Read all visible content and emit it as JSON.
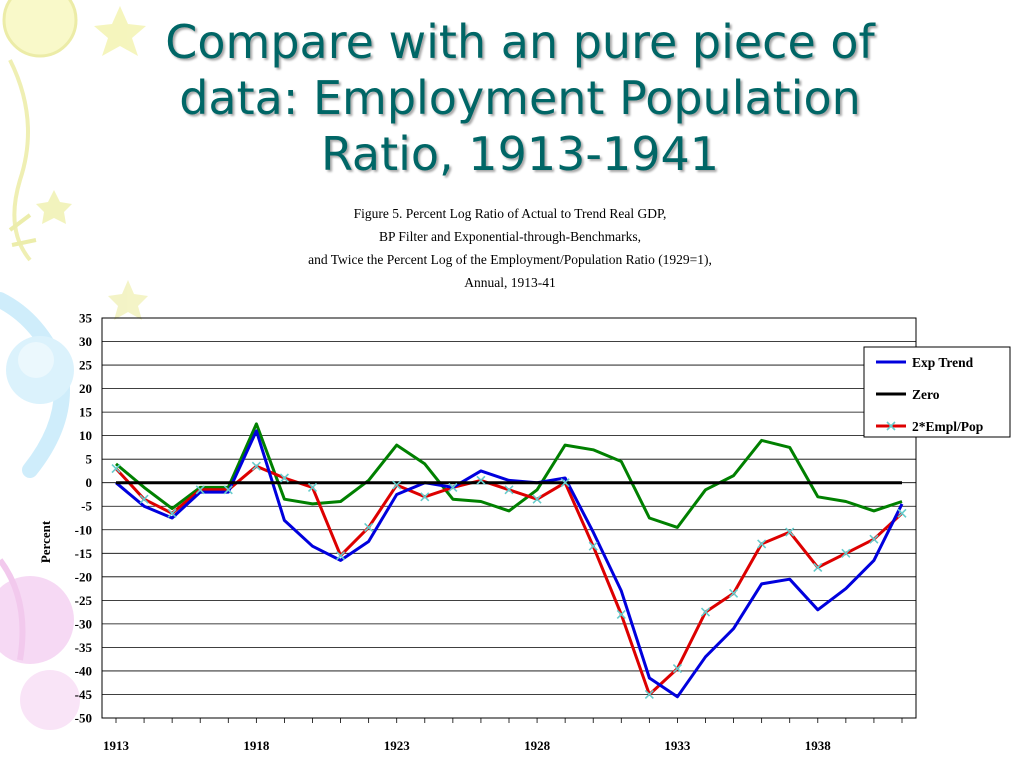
{
  "slide": {
    "title_line1": "Compare with an pure piece of",
    "title_line2": "data:  Employment Population",
    "title_line3": "Ratio, 1913-1941"
  },
  "figure": {
    "caption_line1": "Figure 5.  Percent Log Ratio of Actual to Trend Real GDP,",
    "caption_line2": "BP Filter and Exponential-through-Benchmarks,",
    "caption_line3": "and Twice the Percent Log of the Employment/Population Ratio (1929=1),",
    "caption_line4": "Annual, 1913-41"
  },
  "chart_data": {
    "type": "line",
    "ylabel": "Percent",
    "xlabel": "",
    "ylim": [
      -50,
      35
    ],
    "yticks": [
      35,
      30,
      25,
      20,
      15,
      10,
      5,
      0,
      -5,
      -10,
      -15,
      -20,
      -25,
      -30,
      -35,
      -40,
      -45,
      -50
    ],
    "x": [
      1913,
      1914,
      1915,
      1916,
      1917,
      1918,
      1919,
      1920,
      1921,
      1922,
      1923,
      1924,
      1925,
      1926,
      1927,
      1928,
      1929,
      1930,
      1931,
      1932,
      1933,
      1934,
      1935,
      1936,
      1937,
      1938,
      1939,
      1940,
      1941
    ],
    "xtick_labels": [
      "1913",
      "1918",
      "1923",
      "1928",
      "1933",
      "1938"
    ],
    "grid": "horizontal",
    "legend_position": "right",
    "series": [
      {
        "name": "Exp Trend",
        "color": "#0000dd",
        "marker": "none",
        "values": [
          0,
          -5,
          -7.5,
          -2,
          -2,
          11,
          -8,
          -13.5,
          -16.5,
          -12.5,
          -2.5,
          0,
          -1,
          2.5,
          0.5,
          0,
          1,
          -10.5,
          -23,
          -41.5,
          -45.5,
          -37,
          -31,
          -21.5,
          -20.5,
          -27,
          -22.5,
          -16.5,
          -4.5
        ]
      },
      {
        "name": "Zero",
        "color": "#000000",
        "marker": "none",
        "values": [
          0,
          0,
          0,
          0,
          0,
          0,
          0,
          0,
          0,
          0,
          0,
          0,
          0,
          0,
          0,
          0,
          0,
          0,
          0,
          0,
          0,
          0,
          0,
          0,
          0,
          0,
          0,
          0,
          0
        ]
      },
      {
        "name": "2*Empl/Pop",
        "color": "#dd0000",
        "marker": "x",
        "values": [
          3,
          -3.5,
          -6.5,
          -1.5,
          -1.5,
          3.5,
          1,
          -1,
          -15.5,
          -9.5,
          -0.5,
          -3,
          -1,
          0.5,
          -1.5,
          -3.5,
          0,
          -13.5,
          -28,
          -45,
          -39.5,
          -27.5,
          -23.5,
          -13,
          -10.5,
          -18,
          -15,
          -12,
          -6.5
        ]
      },
      {
        "color": "#008000",
        "marker": "none",
        "values": [
          4,
          -1,
          -5.5,
          -1,
          -1,
          12.5,
          -3.5,
          -4.5,
          -4,
          0.5,
          8,
          4,
          -3.5,
          -4,
          -6,
          -1.5,
          8,
          7,
          4.5,
          -7.5,
          -9.5,
          -1.5,
          1.5,
          9,
          7.5,
          -3,
          -4,
          -6,
          -4
        ]
      }
    ]
  },
  "colors": {
    "title": "#006666",
    "decor_yellow": "#f2f29a",
    "decor_blue": "#bfe8fa",
    "decor_pink": "#f4cdf1",
    "decor_green": "#d9f2a6"
  }
}
